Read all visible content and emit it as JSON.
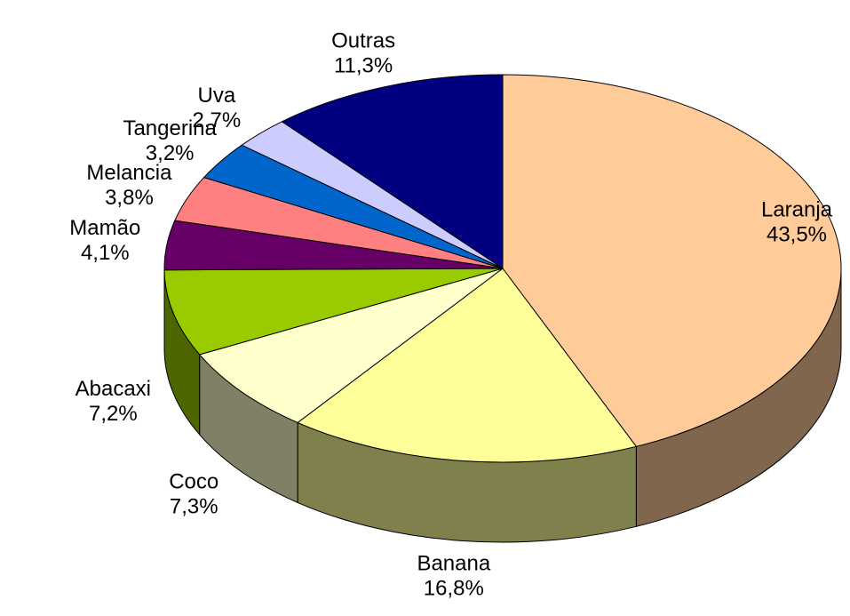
{
  "chart_data": {
    "type": "pie",
    "categories": [
      "Laranja",
      "Banana",
      "Coco",
      "Abacaxi",
      "Mamão",
      "Melancia",
      "Tangerina",
      "Uva",
      "Outras"
    ],
    "values": [
      43.5,
      16.8,
      7.3,
      7.2,
      4.1,
      3.8,
      3.2,
      2.7,
      11.3
    ],
    "value_labels": [
      "43,5%",
      "16,8%",
      "7,3%",
      "7,2%",
      "4,1%",
      "3,8%",
      "3,2%",
      "2,7%",
      "11,3%"
    ],
    "colors": [
      "#ffcc99",
      "#ffff99",
      "#ffffcc",
      "#99cc00",
      "#660066",
      "#ff8080",
      "#0066cc",
      "#ccccff",
      "#000080"
    ]
  }
}
